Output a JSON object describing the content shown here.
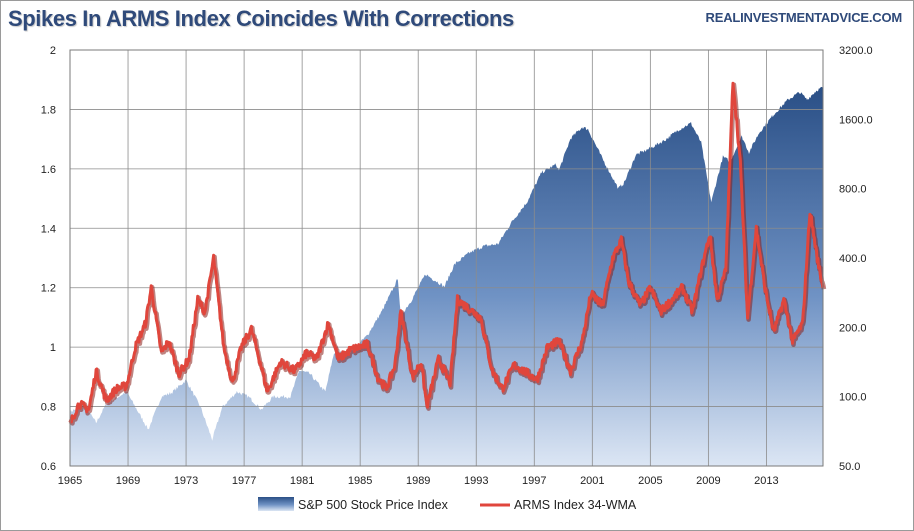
{
  "header": {
    "title": "Spikes In ARMS Index Coincides With Corrections",
    "source": "REALINVESTMENTADVICE.COM"
  },
  "colors": {
    "arms_line": "#e0463c",
    "arms_shadow": "#8b1f1a",
    "area_top": "#2a4f86",
    "area_bottom": "#dce6f4",
    "grid": "#8c8c8c"
  },
  "chart_data": {
    "type": "area+line",
    "title": "Spikes In ARMS Index Coincides With Corrections",
    "x_range": [
      1965,
      2016.9
    ],
    "x_ticks": [
      "1965",
      "1969",
      "1973",
      "1977",
      "1981",
      "1985",
      "1989",
      "1993",
      "1997",
      "2001",
      "2005",
      "2009",
      "2013"
    ],
    "left_axis": {
      "min": 0.6,
      "max": 2.0,
      "ticks": [
        "0.6",
        "0.8",
        "1",
        "1.2",
        "1.4",
        "1.6",
        "1.8",
        "2"
      ]
    },
    "right_axis": {
      "scale": "log",
      "min": 50,
      "max": 3200,
      "ticks": [
        "50.0",
        "100.0",
        "200.0",
        "400.0",
        "800.0",
        "1600.0",
        "3200.0"
      ]
    },
    "legend": [
      "S&P 500 Stock Price Index",
      "ARMS Index 34-WMA"
    ],
    "series": [
      {
        "name": "S&P 500 Stock Price Index",
        "axis": "right",
        "style": "area",
        "points": [
          [
            1965.0,
            86
          ],
          [
            1966.0,
            92
          ],
          [
            1966.8,
            77
          ],
          [
            1967.5,
            93
          ],
          [
            1968.9,
            105
          ],
          [
            1970.4,
            72
          ],
          [
            1971.3,
            100
          ],
          [
            1972.0,
            104
          ],
          [
            1973.0,
            118
          ],
          [
            1974.0,
            90
          ],
          [
            1974.8,
            65
          ],
          [
            1975.5,
            90
          ],
          [
            1976.5,
            105
          ],
          [
            1977.3,
            100
          ],
          [
            1978.2,
            88
          ],
          [
            1979.0,
            100
          ],
          [
            1980.2,
            100
          ],
          [
            1980.8,
            130
          ],
          [
            1981.5,
            126
          ],
          [
            1982.6,
            105
          ],
          [
            1983.2,
            155
          ],
          [
            1984.4,
            157
          ],
          [
            1985.5,
            185
          ],
          [
            1986.5,
            235
          ],
          [
            1987.6,
            325
          ],
          [
            1987.8,
            225
          ],
          [
            1988.5,
            260
          ],
          [
            1989.5,
            340
          ],
          [
            1990.5,
            310
          ],
          [
            1990.8,
            300
          ],
          [
            1991.5,
            375
          ],
          [
            1992.5,
            420
          ],
          [
            1993.5,
            450
          ],
          [
            1994.5,
            460
          ],
          [
            1995.5,
            580
          ],
          [
            1996.5,
            700
          ],
          [
            1997.5,
            940
          ],
          [
            1998.5,
            1020
          ],
          [
            1998.7,
            960
          ],
          [
            1999.5,
            1320
          ],
          [
            2000.3,
            1480
          ],
          [
            2000.7,
            1450
          ],
          [
            2001.7,
            1080
          ],
          [
            2002.8,
            800
          ],
          [
            2003.2,
            850
          ],
          [
            2004.0,
            1120
          ],
          [
            2005.0,
            1200
          ],
          [
            2006.0,
            1300
          ],
          [
            2007.0,
            1450
          ],
          [
            2007.8,
            1540
          ],
          [
            2008.5,
            1270
          ],
          [
            2008.9,
            900
          ],
          [
            2009.2,
            700
          ],
          [
            2010.0,
            1100
          ],
          [
            2010.5,
            1050
          ],
          [
            2011.3,
            1350
          ],
          [
            2011.8,
            1150
          ],
          [
            2012.5,
            1400
          ],
          [
            2013.5,
            1680
          ],
          [
            2014.5,
            1950
          ],
          [
            2015.3,
            2100
          ],
          [
            2015.8,
            1950
          ],
          [
            2016.5,
            2150
          ],
          [
            2016.9,
            2200
          ]
        ]
      },
      {
        "name": "ARMS Index 34-WMA",
        "axis": "left",
        "style": "line",
        "points": [
          [
            1965.0,
            0.74
          ],
          [
            1965.6,
            0.81
          ],
          [
            1966.3,
            0.79
          ],
          [
            1966.8,
            0.92
          ],
          [
            1967.5,
            0.82
          ],
          [
            1968.2,
            0.86
          ],
          [
            1968.9,
            0.87
          ],
          [
            1969.5,
            1.0
          ],
          [
            1970.2,
            1.08
          ],
          [
            1970.6,
            1.2
          ],
          [
            1971.3,
            0.98
          ],
          [
            1971.8,
            1.02
          ],
          [
            1972.5,
            0.91
          ],
          [
            1973.2,
            0.96
          ],
          [
            1973.8,
            1.16
          ],
          [
            1974.3,
            1.12
          ],
          [
            1974.9,
            1.3
          ],
          [
            1975.6,
            1.0
          ],
          [
            1976.2,
            0.88
          ],
          [
            1976.8,
            1.0
          ],
          [
            1977.5,
            1.06
          ],
          [
            1978.0,
            0.97
          ],
          [
            1978.6,
            0.85
          ],
          [
            1979.5,
            0.95
          ],
          [
            1980.5,
            0.92
          ],
          [
            1981.3,
            0.98
          ],
          [
            1982.0,
            0.96
          ],
          [
            1982.8,
            1.08
          ],
          [
            1983.5,
            0.96
          ],
          [
            1984.3,
            0.99
          ],
          [
            1985.5,
            1.01
          ],
          [
            1986.2,
            0.9
          ],
          [
            1986.8,
            0.86
          ],
          [
            1987.4,
            0.94
          ],
          [
            1987.8,
            1.12
          ],
          [
            1988.6,
            0.9
          ],
          [
            1989.2,
            0.95
          ],
          [
            1989.6,
            0.8
          ],
          [
            1990.4,
            0.96
          ],
          [
            1991.2,
            0.88
          ],
          [
            1991.7,
            1.16
          ],
          [
            1992.5,
            1.13
          ],
          [
            1993.3,
            1.1
          ],
          [
            1994.1,
            0.92
          ],
          [
            1994.8,
            0.86
          ],
          [
            1995.6,
            0.94
          ],
          [
            1996.6,
            0.91
          ],
          [
            1997.2,
            0.89
          ],
          [
            1997.9,
            1.0
          ],
          [
            1998.7,
            1.02
          ],
          [
            1999.5,
            0.92
          ],
          [
            2000.3,
            1.02
          ],
          [
            2000.9,
            1.18
          ],
          [
            2001.7,
            1.14
          ],
          [
            2002.4,
            1.3
          ],
          [
            2003.0,
            1.36
          ],
          [
            2003.5,
            1.22
          ],
          [
            2004.3,
            1.14
          ],
          [
            2005.0,
            1.2
          ],
          [
            2005.7,
            1.12
          ],
          [
            2006.3,
            1.15
          ],
          [
            2007.2,
            1.2
          ],
          [
            2007.9,
            1.12
          ],
          [
            2008.5,
            1.26
          ],
          [
            2009.1,
            1.38
          ],
          [
            2009.6,
            1.16
          ],
          [
            2010.2,
            1.26
          ],
          [
            2010.7,
            1.9
          ],
          [
            2011.2,
            1.62
          ],
          [
            2011.7,
            1.1
          ],
          [
            2012.3,
            1.4
          ],
          [
            2012.9,
            1.2
          ],
          [
            2013.5,
            1.05
          ],
          [
            2014.2,
            1.16
          ],
          [
            2014.8,
            1.02
          ],
          [
            2015.5,
            1.08
          ],
          [
            2016.0,
            1.46
          ],
          [
            2016.5,
            1.3
          ],
          [
            2016.9,
            1.2
          ]
        ]
      }
    ]
  }
}
